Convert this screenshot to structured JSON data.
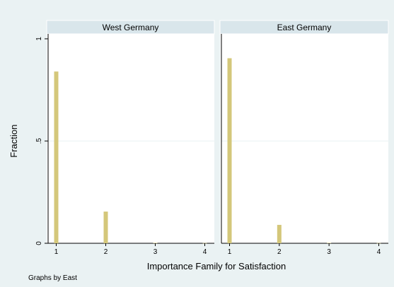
{
  "chart_data": {
    "type": "bar",
    "chart_subtype": "histogram-by-group",
    "xlabel": "Importance Family for Satisfaction",
    "ylabel": "Fraction",
    "note": "Graphs by East",
    "ylim": [
      0,
      1
    ],
    "xlim": [
      0.95,
      4.05
    ],
    "x_ticks": [
      "1",
      "2",
      "3",
      "4"
    ],
    "y_ticks": [
      "0",
      ".5",
      "1"
    ],
    "y_tick_values": [
      0,
      0.5,
      1
    ],
    "grid": true,
    "bar_color": "#d4c77a",
    "panels": [
      {
        "title": "West Germany",
        "x": [
          1,
          2,
          3,
          4
        ],
        "values": [
          0.84,
          0.155,
          0.002,
          0.001
        ]
      },
      {
        "title": "East Germany",
        "x": [
          1,
          2,
          3,
          4
        ],
        "values": [
          0.905,
          0.09,
          0.002,
          0.001
        ]
      }
    ]
  }
}
